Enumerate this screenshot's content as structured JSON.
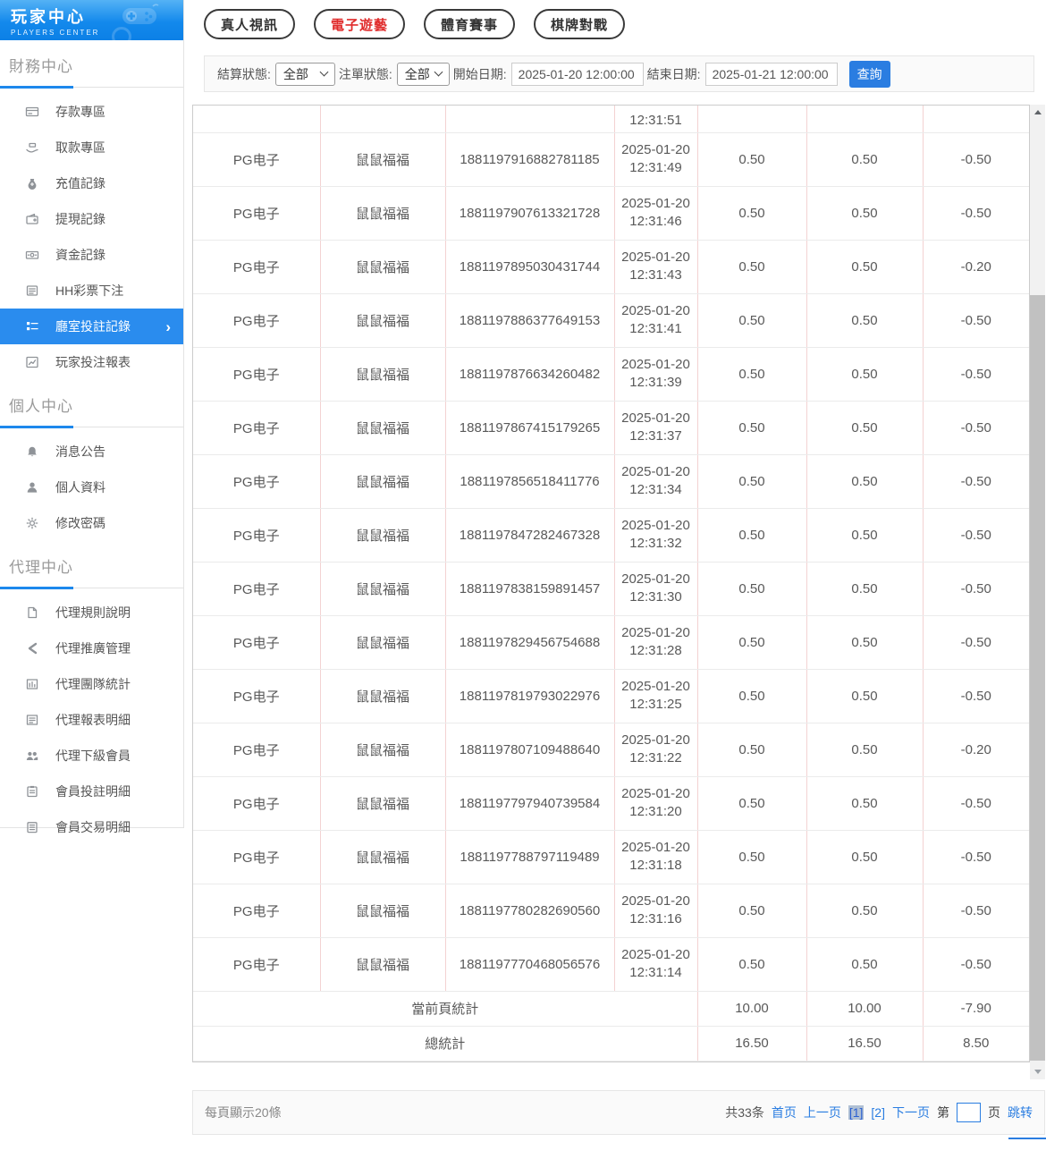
{
  "sidebar": {
    "logo": {
      "title": "玩家中心",
      "subtitle": "PLAYERS CENTER"
    },
    "sections": [
      {
        "title": "財務中心",
        "items": [
          {
            "label": "存款專區",
            "name": "deposit-zone",
            "icon": "deposit-icon"
          },
          {
            "label": "取款專區",
            "name": "withdraw-zone",
            "icon": "withdraw-icon"
          },
          {
            "label": "充值記錄",
            "name": "recharge-records",
            "icon": "recharge-icon"
          },
          {
            "label": "提現記錄",
            "name": "cashout-records",
            "icon": "cashout-icon"
          },
          {
            "label": "資金記錄",
            "name": "funds-records",
            "icon": "funds-icon"
          },
          {
            "label": "HH彩票下注",
            "name": "hh-lottery-bets",
            "icon": "lottery-icon"
          },
          {
            "label": "廳室投註記錄",
            "name": "room-bet-records",
            "icon": "bet-records-icon",
            "active": true
          },
          {
            "label": "玩家投注報表",
            "name": "player-bet-report",
            "icon": "report-icon"
          }
        ]
      },
      {
        "title": "個人中心",
        "items": [
          {
            "label": "消息公告",
            "name": "announcements",
            "icon": "bell-icon"
          },
          {
            "label": "個人資料",
            "name": "profile",
            "icon": "user-icon"
          },
          {
            "label": "修改密碼",
            "name": "change-password",
            "icon": "gear-icon"
          }
        ]
      },
      {
        "title": "代理中心",
        "items": [
          {
            "label": "代理規則說明",
            "name": "agent-rules",
            "icon": "doc-icon"
          },
          {
            "label": "代理推廣管理",
            "name": "agent-promotion",
            "icon": "share-icon"
          },
          {
            "label": "代理團隊統計",
            "name": "agent-team-stats",
            "icon": "team-stats-icon"
          },
          {
            "label": "代理報表明細",
            "name": "agent-report-detail",
            "icon": "report-detail-icon"
          },
          {
            "label": "代理下級會員",
            "name": "agent-sub-members",
            "icon": "members-icon"
          },
          {
            "label": "會員投註明細",
            "name": "member-bet-detail",
            "icon": "member-bets-icon"
          },
          {
            "label": "會員交易明細",
            "name": "member-transaction-detail",
            "icon": "member-trans-icon"
          }
        ]
      }
    ]
  },
  "tabs": [
    {
      "label": "真人視訊",
      "name": "live-video",
      "active": false
    },
    {
      "label": "電子遊藝",
      "name": "electronic-games",
      "active": true
    },
    {
      "label": "體育賽事",
      "name": "sports-events",
      "active": false
    },
    {
      "label": "棋牌對戰",
      "name": "board-card-battle",
      "active": false
    }
  ],
  "colors": {
    "accent_blue": "#2a7de1",
    "active_nav_blue": "#2a8cee",
    "active_tab_red": "#e02c2c"
  },
  "filters": {
    "settle_status": {
      "label": "結算狀態:",
      "value": "全部"
    },
    "order_status": {
      "label": "注單狀態:",
      "value": "全部"
    },
    "start_date": {
      "label": "開始日期:",
      "value": "2025-01-20 12:00:00"
    },
    "end_date": {
      "label": "結束日期:",
      "value": "2025-01-21 12:00:00"
    },
    "query_label": "查詢"
  },
  "table": {
    "partial_row": {
      "time": "12:31:51"
    },
    "rows": [
      {
        "platform": "PG电子",
        "game": "鼠鼠福福",
        "order_no": "1881197916882781185",
        "date": "2025-01-20",
        "time": "12:31:49",
        "bet": "0.50",
        "valid_bet": "0.50",
        "win_loss": "-0.50"
      },
      {
        "platform": "PG电子",
        "game": "鼠鼠福福",
        "order_no": "1881197907613321728",
        "date": "2025-01-20",
        "time": "12:31:46",
        "bet": "0.50",
        "valid_bet": "0.50",
        "win_loss": "-0.50"
      },
      {
        "platform": "PG电子",
        "game": "鼠鼠福福",
        "order_no": "1881197895030431744",
        "date": "2025-01-20",
        "time": "12:31:43",
        "bet": "0.50",
        "valid_bet": "0.50",
        "win_loss": "-0.20"
      },
      {
        "platform": "PG电子",
        "game": "鼠鼠福福",
        "order_no": "1881197886377649153",
        "date": "2025-01-20",
        "time": "12:31:41",
        "bet": "0.50",
        "valid_bet": "0.50",
        "win_loss": "-0.50"
      },
      {
        "platform": "PG电子",
        "game": "鼠鼠福福",
        "order_no": "1881197876634260482",
        "date": "2025-01-20",
        "time": "12:31:39",
        "bet": "0.50",
        "valid_bet": "0.50",
        "win_loss": "-0.50"
      },
      {
        "platform": "PG电子",
        "game": "鼠鼠福福",
        "order_no": "1881197867415179265",
        "date": "2025-01-20",
        "time": "12:31:37",
        "bet": "0.50",
        "valid_bet": "0.50",
        "win_loss": "-0.50"
      },
      {
        "platform": "PG电子",
        "game": "鼠鼠福福",
        "order_no": "1881197856518411776",
        "date": "2025-01-20",
        "time": "12:31:34",
        "bet": "0.50",
        "valid_bet": "0.50",
        "win_loss": "-0.50"
      },
      {
        "platform": "PG电子",
        "game": "鼠鼠福福",
        "order_no": "1881197847282467328",
        "date": "2025-01-20",
        "time": "12:31:32",
        "bet": "0.50",
        "valid_bet": "0.50",
        "win_loss": "-0.50"
      },
      {
        "platform": "PG电子",
        "game": "鼠鼠福福",
        "order_no": "1881197838159891457",
        "date": "2025-01-20",
        "time": "12:31:30",
        "bet": "0.50",
        "valid_bet": "0.50",
        "win_loss": "-0.50"
      },
      {
        "platform": "PG电子",
        "game": "鼠鼠福福",
        "order_no": "1881197829456754688",
        "date": "2025-01-20",
        "time": "12:31:28",
        "bet": "0.50",
        "valid_bet": "0.50",
        "win_loss": "-0.50"
      },
      {
        "platform": "PG电子",
        "game": "鼠鼠福福",
        "order_no": "1881197819793022976",
        "date": "2025-01-20",
        "time": "12:31:25",
        "bet": "0.50",
        "valid_bet": "0.50",
        "win_loss": "-0.50"
      },
      {
        "platform": "PG电子",
        "game": "鼠鼠福福",
        "order_no": "1881197807109488640",
        "date": "2025-01-20",
        "time": "12:31:22",
        "bet": "0.50",
        "valid_bet": "0.50",
        "win_loss": "-0.20"
      },
      {
        "platform": "PG电子",
        "game": "鼠鼠福福",
        "order_no": "1881197797940739584",
        "date": "2025-01-20",
        "time": "12:31:20",
        "bet": "0.50",
        "valid_bet": "0.50",
        "win_loss": "-0.50"
      },
      {
        "platform": "PG电子",
        "game": "鼠鼠福福",
        "order_no": "1881197788797119489",
        "date": "2025-01-20",
        "time": "12:31:18",
        "bet": "0.50",
        "valid_bet": "0.50",
        "win_loss": "-0.50"
      },
      {
        "platform": "PG电子",
        "game": "鼠鼠福福",
        "order_no": "1881197780282690560",
        "date": "2025-01-20",
        "time": "12:31:16",
        "bet": "0.50",
        "valid_bet": "0.50",
        "win_loss": "-0.50"
      },
      {
        "platform": "PG电子",
        "game": "鼠鼠福福",
        "order_no": "1881197770468056576",
        "date": "2025-01-20",
        "time": "12:31:14",
        "bet": "0.50",
        "valid_bet": "0.50",
        "win_loss": "-0.50"
      }
    ],
    "summary_current": {
      "label": "當前頁統計",
      "bet": "10.00",
      "valid_bet": "10.00",
      "win_loss": "-7.90"
    },
    "summary_total": {
      "label": "總統計",
      "bet": "16.50",
      "valid_bet": "16.50",
      "win_loss": "8.50"
    }
  },
  "pagination": {
    "per_page_text": "每頁顯示20條",
    "total_text": "共33条",
    "first": "首页",
    "prev": "上一页",
    "pages": [
      "[1]",
      "[2]"
    ],
    "next": "下一页",
    "jump_prefix": "第",
    "jump_suffix": "页",
    "jump": "跳转",
    "jump_value": ""
  }
}
